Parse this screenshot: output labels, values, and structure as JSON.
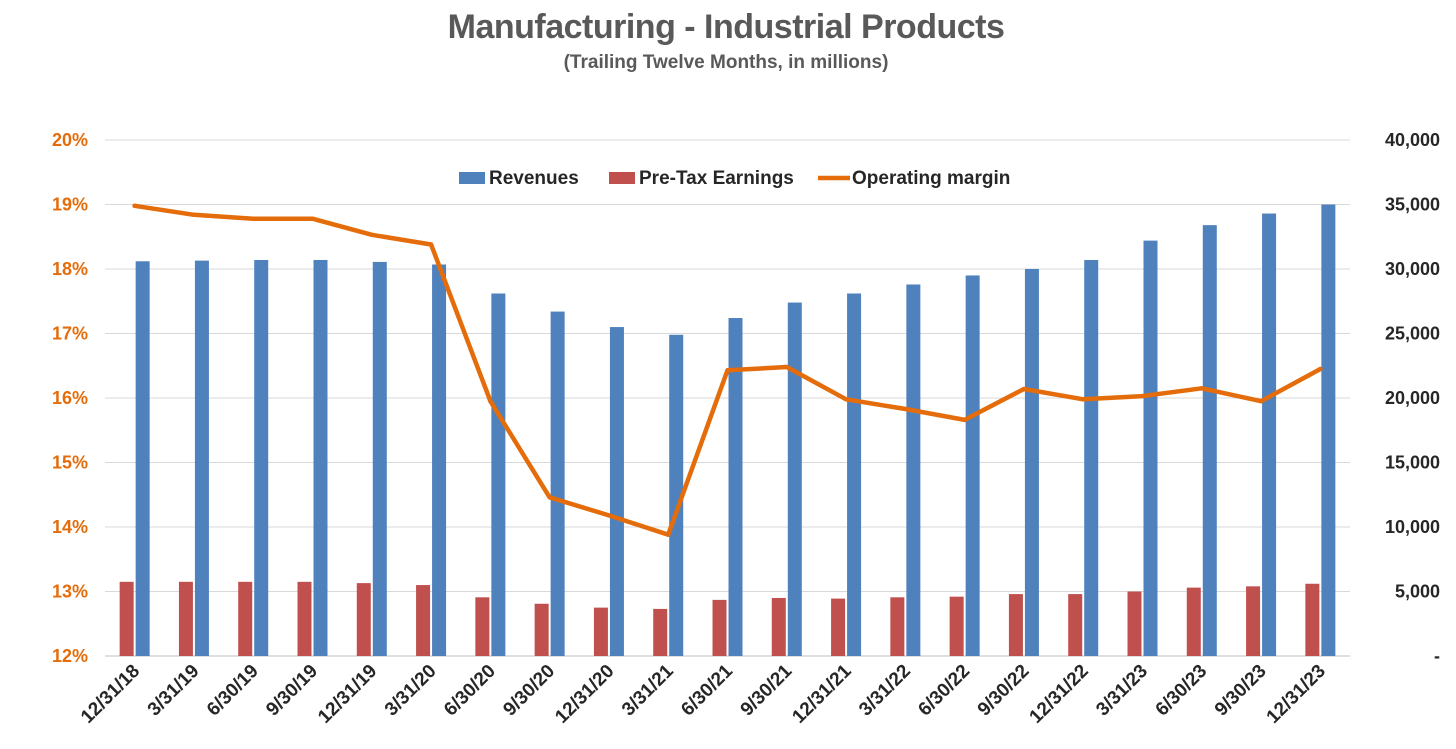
{
  "chart_data": {
    "type": "bar",
    "title": "Manufacturing - Industrial Products",
    "subtitle": "(Trailing Twelve Months, in millions)",
    "categories": [
      "12/31/18",
      "3/31/19",
      "6/30/19",
      "9/30/19",
      "12/31/19",
      "3/31/20",
      "6/30/20",
      "9/30/20",
      "12/31/20",
      "3/31/21",
      "6/30/21",
      "9/30/21",
      "12/31/21",
      "3/31/22",
      "6/30/22",
      "9/30/22",
      "12/31/22",
      "3/31/23",
      "6/30/23",
      "9/30/23",
      "12/31/23"
    ],
    "series": [
      {
        "name": "Revenues",
        "type": "bar",
        "axis": "right",
        "color": "#4F81BD",
        "values": [
          30600,
          30650,
          30700,
          30700,
          30550,
          30350,
          28100,
          26700,
          25500,
          24900,
          26200,
          27400,
          28100,
          28800,
          29500,
          30000,
          30700,
          32200,
          33400,
          34300,
          35000
        ]
      },
      {
        "name": "Pre-Tax Earnings",
        "type": "bar",
        "axis": "right",
        "color": "#C0504D",
        "values": [
          5750,
          5750,
          5750,
          5750,
          5650,
          5500,
          4550,
          4050,
          3750,
          3650,
          4350,
          4500,
          4450,
          4550,
          4600,
          4800,
          4800,
          5000,
          5300,
          5400,
          5600
        ]
      },
      {
        "name": "Operating margin",
        "type": "line",
        "axis": "left",
        "color": "#E46C0A",
        "values": [
          18.98,
          18.84,
          18.78,
          18.78,
          18.53,
          18.38,
          15.95,
          14.46,
          14.18,
          13.88,
          16.43,
          16.48,
          15.98,
          15.83,
          15.66,
          16.14,
          15.98,
          16.03,
          16.15,
          15.95,
          16.45
        ]
      }
    ],
    "left_axis": {
      "ylim": [
        0.12,
        0.2
      ],
      "ticks": [
        "12%",
        "13%",
        "14%",
        "15%",
        "16%",
        "17%",
        "18%",
        "19%",
        "20%"
      ]
    },
    "right_axis": {
      "ylim": [
        0,
        40000
      ],
      "ticks": [
        "-",
        "5,000",
        "10,000",
        "15,000",
        "20,000",
        "25,000",
        "30,000",
        "35,000",
        "40,000"
      ]
    },
    "grid": true,
    "legend_position": "top-center"
  }
}
